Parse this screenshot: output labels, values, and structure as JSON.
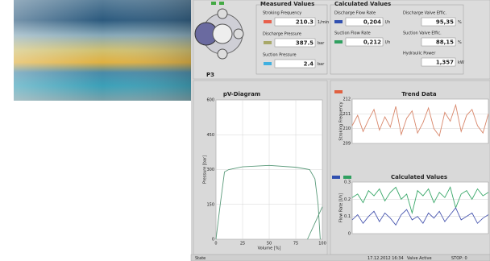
{
  "pump_label": "P3",
  "measured": {
    "title": "Measured Values",
    "items": [
      {
        "label": "Stroking Frequency",
        "value": "210.3",
        "unit": "1/min"
      },
      {
        "label": "Discharge Pressure",
        "value": "387.5",
        "unit": "bar"
      },
      {
        "label": "Suction Pressure",
        "value": "2.4",
        "unit": "bar"
      }
    ]
  },
  "calculated": {
    "title": "Calculated Values",
    "items": [
      {
        "label": "Discharge Flow Rate",
        "value": "0,204",
        "unit": "l/h"
      },
      {
        "label": "Suction Flow Rate",
        "value": "0,212",
        "unit": "l/h"
      },
      {
        "label": "Discharge Valve Effic.",
        "value": "95,35",
        "unit": "%"
      },
      {
        "label": "Suction Valve Effic.",
        "value": "88,15",
        "unit": "%"
      },
      {
        "label": "Hydraulic Power",
        "value": "1,357",
        "unit": "kW"
      }
    ]
  },
  "pv_chart": {
    "type": "line",
    "title": "pV-Diagram",
    "x_label": "Volume [%]",
    "y_label": "Pressure [bar]",
    "x": [
      0,
      4,
      8,
      12,
      25,
      50,
      75,
      88,
      93,
      96,
      98,
      null,
      86,
      100
    ],
    "series": [
      {
        "color": "#5a9a7a",
        "values": [
          0,
          150,
          290,
          300,
          312,
          318,
          310,
          300,
          260,
          150,
          0,
          null,
          0,
          140
        ]
      }
    ],
    "xlim": [
      0,
      100
    ],
    "ylim": [
      0,
      600
    ],
    "xticks": [
      0,
      25,
      50,
      75,
      100
    ],
    "yticks": [
      0,
      150,
      300,
      450,
      600
    ]
  },
  "trend_chart": {
    "type": "line",
    "title": "Trend Data",
    "y_label": "Stroking Frequency",
    "series": [
      {
        "color": "#d8866a",
        "values": [
          210.2,
          210.9,
          209.8,
          210.6,
          211.3,
          209.9,
          210.8,
          210.1,
          211.5,
          209.6,
          210.7,
          211.2,
          209.7,
          210.4,
          211.4,
          210.0,
          209.5,
          211.1,
          210.5,
          211.6,
          209.8,
          210.9,
          211.3,
          210.2,
          209.7,
          211.0
        ]
      }
    ],
    "ylim": [
      209,
      212
    ],
    "yticks": [
      209,
      210,
      211,
      212
    ]
  },
  "calc_chart": {
    "type": "line",
    "title": "Calculated Values",
    "y_label": "Flow Rate [l/h]",
    "series": [
      {
        "color": "#3aa86a",
        "values": [
          0.21,
          0.23,
          0.18,
          0.25,
          0.22,
          0.26,
          0.19,
          0.24,
          0.27,
          0.2,
          0.23,
          0.12,
          0.25,
          0.22,
          0.26,
          0.18,
          0.24,
          0.21,
          0.27,
          0.15,
          0.23,
          0.25,
          0.2,
          0.26,
          0.22,
          0.24
        ]
      },
      {
        "color": "#4a58b0",
        "values": [
          0.08,
          0.11,
          0.06,
          0.1,
          0.13,
          0.07,
          0.12,
          0.09,
          0.05,
          0.11,
          0.14,
          0.08,
          0.1,
          0.06,
          0.12,
          0.09,
          0.13,
          0.07,
          0.11,
          0.15,
          0.08,
          0.1,
          0.12,
          0.06,
          0.09,
          0.11
        ]
      }
    ],
    "ylim": [
      0,
      0.3
    ],
    "yticks": [
      0,
      0.1,
      0.2,
      0.3
    ]
  },
  "status": [
    "State",
    "17.12.2012 16:34",
    "Valve Active",
    "STOP: 0"
  ]
}
